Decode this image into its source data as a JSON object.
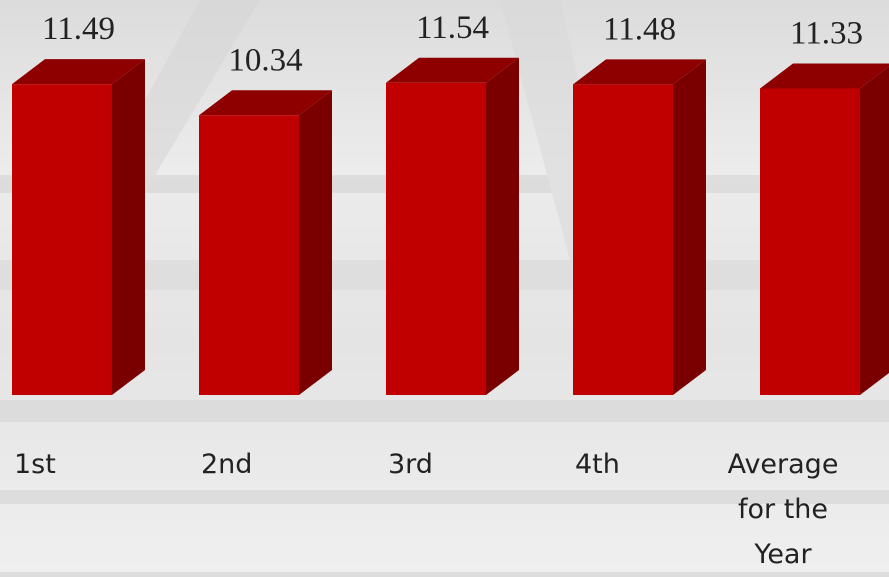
{
  "chart_data": {
    "type": "bar3d",
    "categories": [
      "1st",
      "2nd",
      "3rd",
      "4th",
      "Average for the Year"
    ],
    "values": [
      11.49,
      10.34,
      11.54,
      11.48,
      11.33
    ],
    "color": "#c00000",
    "ylim": [
      0,
      14.6
    ]
  }
}
